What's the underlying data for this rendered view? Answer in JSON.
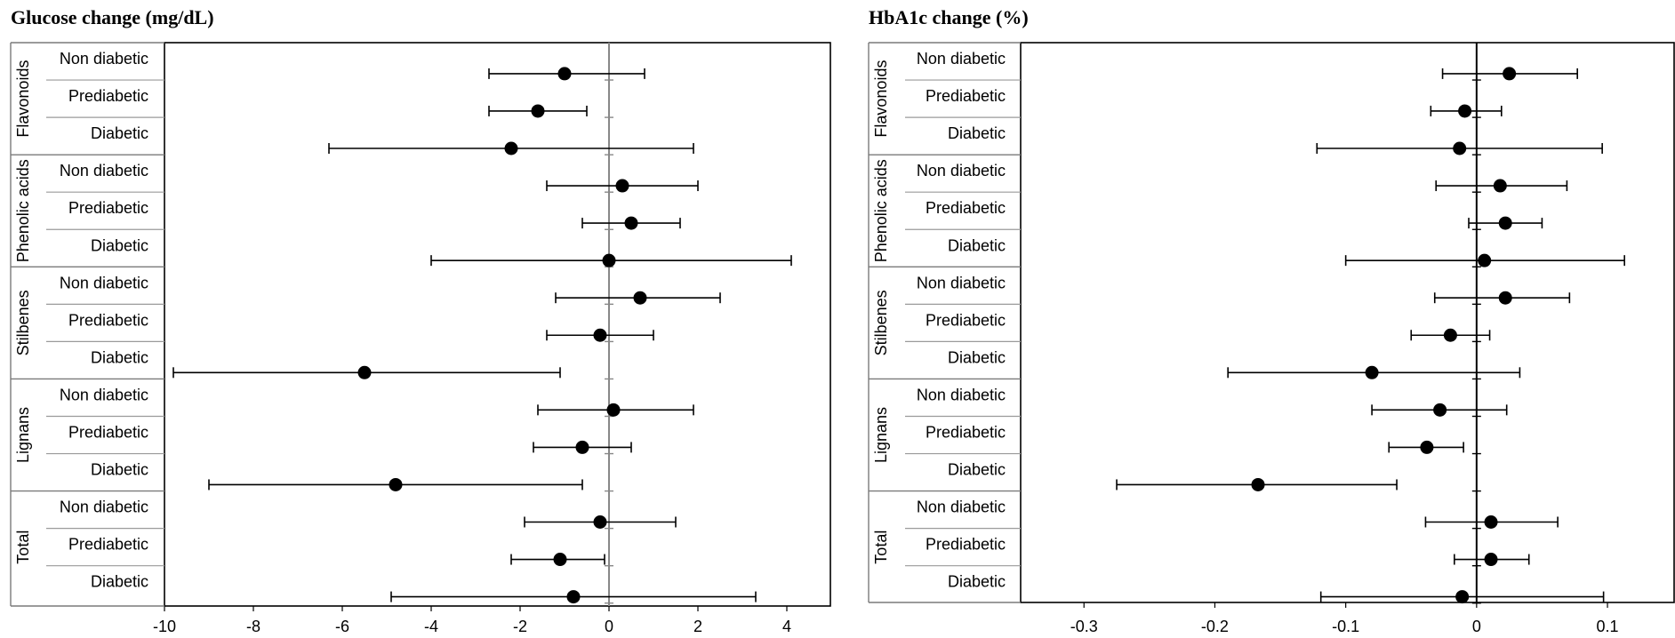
{
  "chart_data": [
    {
      "type": "forest",
      "title": "Glucose change (mg/dL)",
      "xlim": [
        -10,
        5
      ],
      "xticks": [
        -10,
        -8,
        -6,
        -4,
        -2,
        0,
        2,
        4
      ],
      "tick_labels": [
        "-10",
        "-8",
        "-6",
        "-4",
        "-2",
        "0",
        "2",
        "4"
      ],
      "reference_line": 0,
      "groups": [
        {
          "name": "Flavonoids",
          "rows": [
            {
              "label": "Non diabetic",
              "estimate": -1.0,
              "lower": -2.7,
              "upper": 0.8
            },
            {
              "label": "Prediabetic",
              "estimate": -1.6,
              "lower": -2.7,
              "upper": -0.5
            },
            {
              "label": "Diabetic",
              "estimate": -2.2,
              "lower": -6.3,
              "upper": 1.9
            }
          ]
        },
        {
          "name": "Phenolic acids",
          "rows": [
            {
              "label": "Non diabetic",
              "estimate": 0.3,
              "lower": -1.4,
              "upper": 2.0
            },
            {
              "label": "Prediabetic",
              "estimate": 0.5,
              "lower": -0.6,
              "upper": 1.6
            },
            {
              "label": "Diabetic",
              "estimate": 0.0,
              "lower": -4.0,
              "upper": 4.1
            }
          ]
        },
        {
          "name": "Stilbenes",
          "rows": [
            {
              "label": "Non diabetic",
              "estimate": 0.7,
              "lower": -1.2,
              "upper": 2.5
            },
            {
              "label": "Prediabetic",
              "estimate": -0.2,
              "lower": -1.4,
              "upper": 1.0
            },
            {
              "label": "Diabetic",
              "estimate": -5.5,
              "lower": -9.8,
              "upper": -1.1
            }
          ]
        },
        {
          "name": "Lignans",
          "rows": [
            {
              "label": "Non diabetic",
              "estimate": 0.1,
              "lower": -1.6,
              "upper": 1.9
            },
            {
              "label": "Prediabetic",
              "estimate": -0.6,
              "lower": -1.7,
              "upper": 0.5
            },
            {
              "label": "Diabetic",
              "estimate": -4.8,
              "lower": -9.0,
              "upper": -0.6
            }
          ]
        },
        {
          "name": "Total",
          "rows": [
            {
              "label": "Non diabetic",
              "estimate": -0.2,
              "lower": -1.9,
              "upper": 1.5
            },
            {
              "label": "Prediabetic",
              "estimate": -1.1,
              "lower": -2.2,
              "upper": -0.1
            },
            {
              "label": "Diabetic",
              "estimate": -0.8,
              "lower": -4.9,
              "upper": 3.3
            }
          ]
        }
      ]
    },
    {
      "type": "forest",
      "title": "HbA1c change (%)",
      "xlim": [
        -0.3,
        0.15
      ],
      "xticks": [
        -0.3,
        -0.2,
        -0.1,
        0,
        0.1
      ],
      "tick_labels": [
        "-0.3",
        "-0.2",
        "-0.1",
        "0",
        "0.1"
      ],
      "reference_line": 0,
      "groups": [
        {
          "name": "Flavonoids",
          "rows": [
            {
              "label": "Non diabetic",
              "estimate": 0.025,
              "lower": -0.026,
              "upper": 0.077
            },
            {
              "label": "Prediabetic",
              "estimate": -0.009,
              "lower": -0.035,
              "upper": 0.019
            },
            {
              "label": "Diabetic",
              "estimate": -0.013,
              "lower": -0.122,
              "upper": 0.096
            }
          ]
        },
        {
          "name": "Phenolic acids",
          "rows": [
            {
              "label": "Non diabetic",
              "estimate": 0.018,
              "lower": -0.031,
              "upper": 0.069
            },
            {
              "label": "Prediabetic",
              "estimate": 0.022,
              "lower": -0.006,
              "upper": 0.05
            },
            {
              "label": "Diabetic",
              "estimate": 0.006,
              "lower": -0.1,
              "upper": 0.113
            }
          ]
        },
        {
          "name": "Stilbenes",
          "rows": [
            {
              "label": "Non diabetic",
              "estimate": 0.022,
              "lower": -0.032,
              "upper": 0.071
            },
            {
              "label": "Prediabetic",
              "estimate": -0.02,
              "lower": -0.05,
              "upper": 0.01
            },
            {
              "label": "Diabetic",
              "estimate": -0.08,
              "lower": -0.19,
              "upper": 0.033
            }
          ]
        },
        {
          "name": "Lignans",
          "rows": [
            {
              "label": "Non diabetic",
              "estimate": -0.028,
              "lower": -0.08,
              "upper": 0.023
            },
            {
              "label": "Prediabetic",
              "estimate": -0.038,
              "lower": -0.067,
              "upper": -0.01
            },
            {
              "label": "Diabetic",
              "estimate": -0.167,
              "lower": -0.275,
              "upper": -0.061
            }
          ]
        },
        {
          "name": "Total",
          "rows": [
            {
              "label": "Non diabetic",
              "estimate": 0.011,
              "lower": -0.039,
              "upper": 0.062
            },
            {
              "label": "Prediabetic",
              "estimate": 0.011,
              "lower": -0.017,
              "upper": 0.04
            },
            {
              "label": "Diabetic",
              "estimate": -0.011,
              "lower": -0.119,
              "upper": 0.097
            }
          ]
        }
      ]
    }
  ]
}
